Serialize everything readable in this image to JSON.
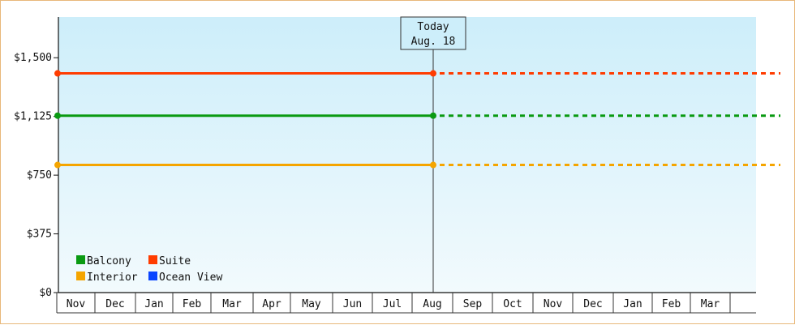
{
  "chart_data": {
    "type": "line",
    "title": "",
    "xlabel": "",
    "ylabel": "",
    "y_ticks": [
      "$0",
      "$375",
      "$750",
      "$1,125",
      "$1,500"
    ],
    "y_tick_values": [
      0,
      375,
      750,
      1125,
      1500
    ],
    "ylim": [
      0,
      1760
    ],
    "months": [
      "Nov",
      "Dec",
      "Jan",
      "Feb",
      "Mar",
      "Apr",
      "May",
      "Jun",
      "Jul",
      "Aug",
      "Sep",
      "Oct",
      "Nov",
      "Dec",
      "Jan",
      "Feb",
      "Mar"
    ],
    "today": {
      "line1": "Today",
      "line2": "Aug. 18",
      "month_index": 9
    },
    "series": [
      {
        "name": "Suite",
        "color": "#ff3c00",
        "value": 1400
      },
      {
        "name": "Balcony",
        "color": "#0a9a12",
        "value": 1130
      },
      {
        "name": "Interior",
        "color": "#f5a500",
        "value": 815
      },
      {
        "name": "Ocean View",
        "color": "#0a44ff",
        "value": null
      }
    ],
    "legend": {
      "placement": "bottom-left",
      "order": [
        "Balcony",
        "Suite",
        "Interior",
        "Ocean View"
      ]
    },
    "background_top": "#cdeefa",
    "background_bottom": "#f2fafd"
  }
}
